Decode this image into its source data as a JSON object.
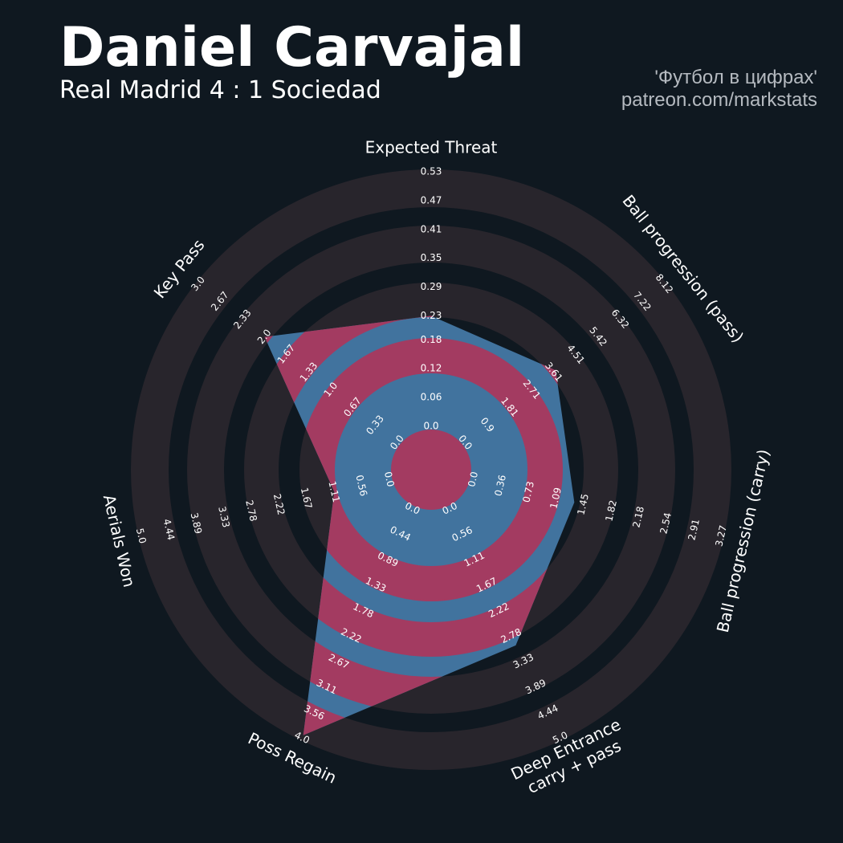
{
  "chart_data": {
    "type": "radar",
    "title": "Daniel Carvajal",
    "subtitle": "Real Madrid 4 : 1 Sociedad",
    "credits": [
      "'Футбол в цифрах'",
      "patreon.com/markstats"
    ],
    "categories": [
      [
        "Expected Threat"
      ],
      [
        "Ball progression (pass)"
      ],
      [
        "Ball progression (carry)"
      ],
      [
        "Deep Entrance",
        "carry + pass"
      ],
      [
        "Poss Regain"
      ],
      [
        "Aerials Won"
      ],
      [
        "Key Pass"
      ]
    ],
    "ranges": [
      [
        0,
        0.53
      ],
      [
        0,
        8.12
      ],
      [
        0,
        3.27
      ],
      [
        0,
        5
      ],
      [
        0,
        4
      ],
      [
        0,
        5
      ],
      [
        0,
        3
      ]
    ],
    "ticks": [
      [
        {
          "value": 0,
          "label": "0.0"
        },
        0.06,
        0.12,
        0.18,
        0.23,
        0.29,
        0.35,
        0.41,
        0.47,
        0.53
      ],
      [
        {
          "value": 0,
          "label": "0.0"
        },
        0.9,
        1.81,
        2.71,
        3.61,
        4.51,
        5.42,
        6.32,
        7.22,
        8.12
      ],
      [
        {
          "value": 0,
          "label": "0.0"
        },
        0.36,
        0.73,
        1.09,
        1.45,
        1.82,
        2.18,
        2.54,
        2.91,
        3.27
      ],
      [
        {
          "value": 0,
          "label": "0.0"
        },
        0.56,
        1.11,
        1.67,
        2.22,
        2.78,
        3.33,
        3.89,
        4.44,
        {
          "value": 5,
          "label": "5.0"
        }
      ],
      [
        {
          "value": 0,
          "label": "0.0"
        },
        0.44,
        0.89,
        1.33,
        1.78,
        2.22,
        2.67,
        3.11,
        3.56,
        {
          "value": 4,
          "label": "4.0"
        }
      ],
      [
        {
          "value": 0,
          "label": "0.0"
        },
        0.56,
        1.11,
        1.67,
        2.22,
        2.78,
        3.33,
        3.89,
        4.44,
        {
          "value": 5,
          "label": "5.0"
        }
      ],
      [
        {
          "value": 0,
          "label": "0.0"
        },
        0.33,
        0.67,
        {
          "value": 1,
          "label": "1.0"
        },
        1.33,
        1.67,
        {
          "value": 2,
          "label": "2.0"
        },
        2.33,
        2.67,
        {
          "value": 3,
          "label": "3.0"
        }
      ]
    ],
    "values": [
      0.23,
      3.7,
      1.33,
      2.98,
      3.95,
      1.1,
      2.0
    ],
    "color": "#41739e",
    "ring_color_inside": "#a33b61",
    "ring_color": "#28252c"
  }
}
